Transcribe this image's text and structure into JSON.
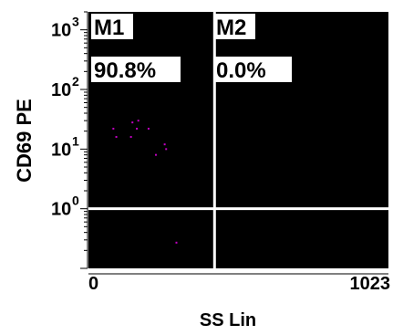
{
  "chart_data": {
    "type": "scatter",
    "xlabel": "SS Lin",
    "ylabel": "CD69 PE",
    "x_scale": "linear",
    "y_scale": "log",
    "xlim": [
      0,
      1023
    ],
    "ylim": [
      0.1,
      2000
    ],
    "x_ticks": [
      {
        "value": 0,
        "label": "0"
      },
      {
        "value": 1023,
        "label": "1023"
      }
    ],
    "y_ticks": [
      {
        "value": 1,
        "label": "10",
        "exp": "0"
      },
      {
        "value": 10,
        "label": "10",
        "exp": "1"
      },
      {
        "value": 100,
        "label": "10",
        "exp": "2"
      },
      {
        "value": 1000,
        "label": "10",
        "exp": "3"
      }
    ],
    "gates": {
      "vertical_x": 430,
      "horizontal_y": 1
    },
    "regions": [
      {
        "name": "M1",
        "percent": "90.8%"
      },
      {
        "name": "M2",
        "percent": "0.0%"
      }
    ],
    "points": [
      {
        "x": 85,
        "y": 22
      },
      {
        "x": 95,
        "y": 16
      },
      {
        "x": 150,
        "y": 28
      },
      {
        "x": 170,
        "y": 30
      },
      {
        "x": 165,
        "y": 22
      },
      {
        "x": 145,
        "y": 16
      },
      {
        "x": 205,
        "y": 22
      },
      {
        "x": 260,
        "y": 12
      },
      {
        "x": 265,
        "y": 10
      },
      {
        "x": 230,
        "y": 8
      },
      {
        "x": 300,
        "y": 0.27
      }
    ],
    "colors": {
      "background": "#000000",
      "points": "#c000c0",
      "gate": "#ffffff",
      "label_box": "#ffffff",
      "label_text": "#000000"
    }
  }
}
